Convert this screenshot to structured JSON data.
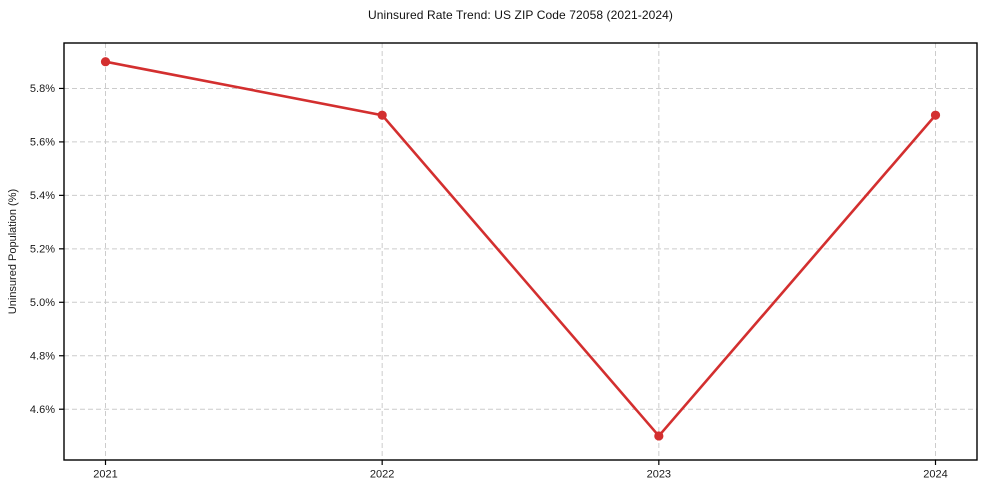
{
  "chart_data": {
    "type": "line",
    "title": "Uninsured Rate Trend: US ZIP Code 72058 (2021-2024)",
    "xlabel": "",
    "ylabel": "Uninsured Population (%)",
    "x": [
      2021,
      2022,
      2023,
      2024
    ],
    "xtick_labels": [
      "2021",
      "2022",
      "2023",
      "2024"
    ],
    "series": [
      {
        "values": [
          5.9,
          5.7,
          4.5,
          5.7
        ]
      }
    ],
    "yticks": [
      4.6,
      4.8,
      5.0,
      5.2,
      5.4,
      5.6,
      5.8
    ],
    "ytick_labels": [
      "4.6%",
      "4.8%",
      "5.0%",
      "5.2%",
      "5.4%",
      "5.6%",
      "5.8%"
    ],
    "xlim": [
      2020.85,
      2024.15
    ],
    "ylim": [
      4.41,
      5.97
    ],
    "grid": true,
    "legend": false,
    "line_color": "#d32f2f",
    "marker": "circle",
    "grid_color": "#cccccc",
    "axis_color": "#000000",
    "text_color": "#1a1a1a"
  }
}
